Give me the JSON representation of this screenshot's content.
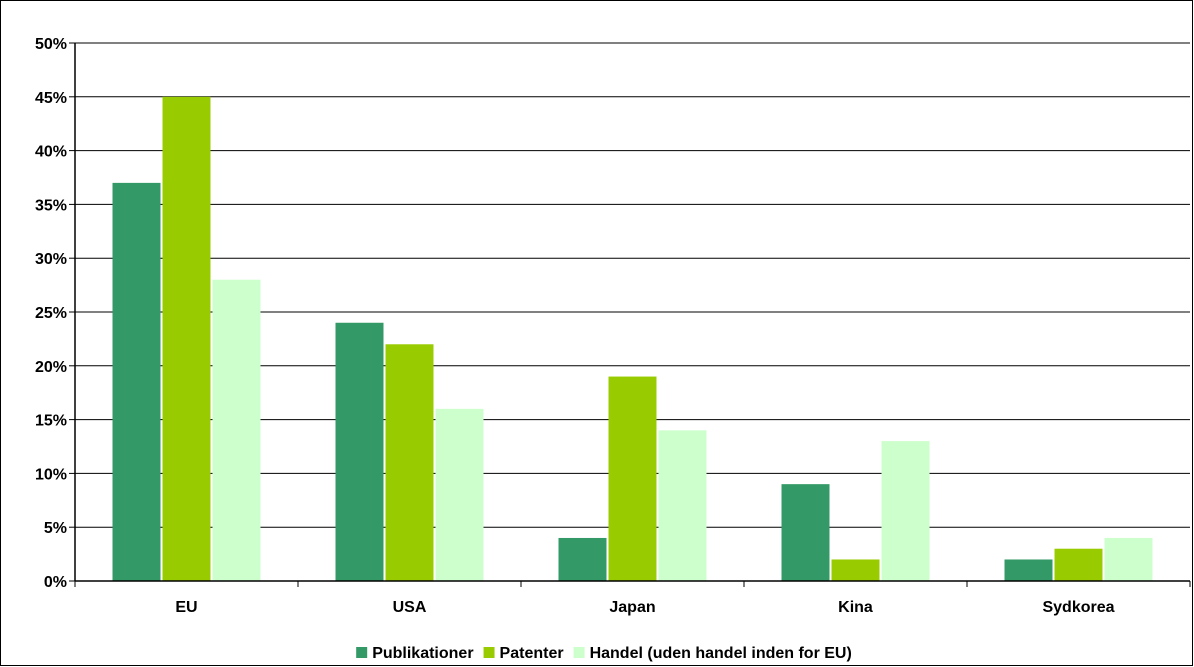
{
  "chart_data": {
    "type": "bar",
    "categories": [
      "EU",
      "USA",
      "Japan",
      "Kina",
      "Sydkorea"
    ],
    "series": [
      {
        "name": "Publikationer",
        "values": [
          37,
          24,
          4,
          9,
          2
        ],
        "color": "#339966"
      },
      {
        "name": "Patenter",
        "values": [
          45,
          22,
          19,
          2,
          3
        ],
        "color": "#99cc00"
      },
      {
        "name": "Handel (uden handel inden for EU)",
        "values": [
          28,
          16,
          14,
          13,
          4
        ],
        "color": "#ccffcc"
      }
    ],
    "ylim": [
      0,
      50
    ],
    "yticks": [
      0,
      5,
      10,
      15,
      20,
      25,
      30,
      35,
      40,
      45,
      50
    ],
    "ytick_suffix": "%",
    "grid": true,
    "legend_position": "bottom"
  }
}
